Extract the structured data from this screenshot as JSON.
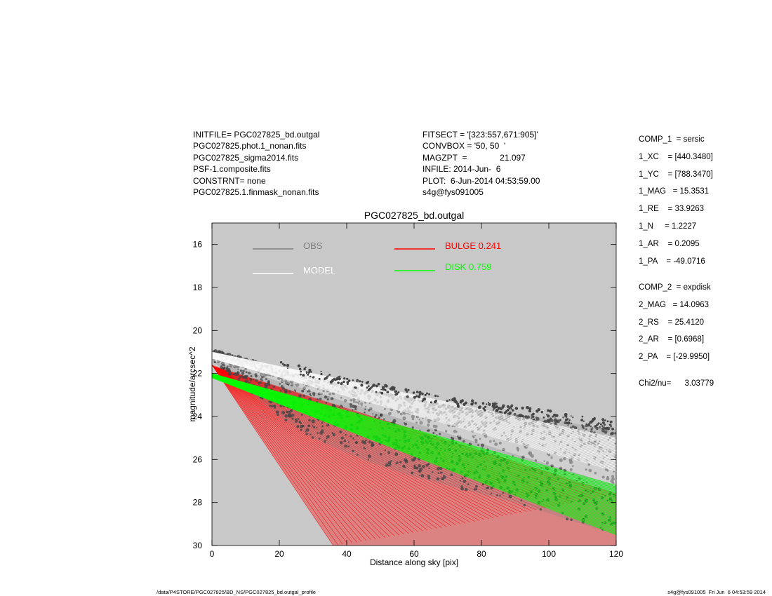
{
  "header_left": [
    "INITFILE= PGC027825_bd.outgal",
    "PGC027825.phot.1_nonan.fits",
    "PGC027825_sigma2014.fits",
    "PSF-1.composite.fits",
    "CONSTRNT= none",
    "PGC027825.1.finmask_nonan.fits"
  ],
  "header_mid": [
    "FITSECT = '[323:557,671:905]'",
    "CONVBOX = '50, 50  '",
    "MAGZPT  =              21.097",
    "INFILE: 2014-Jun-  6",
    "PLOT:  6-Jun-2014 04:53:59.00",
    "s4g@fys091005"
  ],
  "side_params": [
    "COMP_1  = sersic",
    "1_XC    = [440.3480]",
    "1_YC    = [788.3470]",
    "1_MAG   = 15.3531",
    "1_RE    = 33.9263",
    "1_N     = 1.2227",
    "1_AR    = 0.2095",
    "1_PA    = -49.0716",
    "COMP_2  = expdisk",
    "2_MAG   = 14.0963",
    "2_RS    = 25.4120",
    "2_AR    = [0.6968]",
    "2_PA    = [-29.9950]",
    "Chi2/nu=      3.03779"
  ],
  "footer_left": "/data/P4STORE/PGC027825/BD_NS/PGC027825_bd.outgal_profile",
  "footer_right": "s4g@fys091005  Fri Jun  6 04:53:59 2014",
  "colors": {
    "background": "#c8c8c8",
    "obs": "#808080",
    "obs_points": "#454545",
    "model": "#ffffff",
    "bulge": "#ff0000",
    "disk": "#00ff00"
  },
  "chart_data": {
    "type": "scatter",
    "title": "PGC027825_bd.outgal",
    "xlabel": "Distance along sky [pix]",
    "ylabel": "magnitude/arcsec^2",
    "xlim": [
      0,
      120
    ],
    "ylim": [
      30,
      15
    ],
    "y_inverted": true,
    "xticks": [
      0,
      20,
      40,
      60,
      80,
      100,
      120
    ],
    "yticks": [
      16,
      18,
      20,
      22,
      24,
      26,
      28,
      30
    ],
    "grid": false,
    "legend": [
      {
        "label": "OBS",
        "color": "#808080"
      },
      {
        "label": "MODEL",
        "color": "#ffffff"
      },
      {
        "label": "BULGE  0.241",
        "color": "#ff0000"
      },
      {
        "label": "DISK  0.759",
        "color": "#00ff00"
      }
    ],
    "series": [
      {
        "name": "OBS",
        "color": "#808080",
        "x": [
          0,
          5,
          10,
          20,
          30,
          40,
          50,
          60,
          70,
          80,
          90,
          100,
          110,
          120
        ],
        "y_upper": [
          20.9,
          21.1,
          21.3,
          21.8,
          22.2,
          22.6,
          22.9,
          23.2,
          23.5,
          23.7,
          23.9,
          24.1,
          24.4,
          24.6
        ],
        "y_lower": [
          21.4,
          22.0,
          22.7,
          24.0,
          25.0,
          25.7,
          26.3,
          26.8,
          27.2,
          27.6,
          28.0,
          28.5,
          29.0,
          29.5
        ]
      },
      {
        "name": "MODEL",
        "color": "#ffffff",
        "x": [
          0,
          120
        ],
        "y_upper": [
          21.0,
          25.0
        ],
        "y_lower": [
          21.4,
          27.2
        ]
      },
      {
        "name": "BULGE  0.241",
        "color": "#ff0000",
        "x_top": [
          0,
          120
        ],
        "y_top": [
          21.6,
          27.6
        ],
        "x_steep": [
          0,
          36
        ],
        "y_steep": [
          21.6,
          30.0
        ]
      },
      {
        "name": "DISK  0.759",
        "color": "#00ff00",
        "x": [
          0,
          120
        ],
        "y_upper": [
          22.0,
          27.2
        ],
        "y_lower": [
          22.2,
          29.5
        ]
      }
    ]
  }
}
